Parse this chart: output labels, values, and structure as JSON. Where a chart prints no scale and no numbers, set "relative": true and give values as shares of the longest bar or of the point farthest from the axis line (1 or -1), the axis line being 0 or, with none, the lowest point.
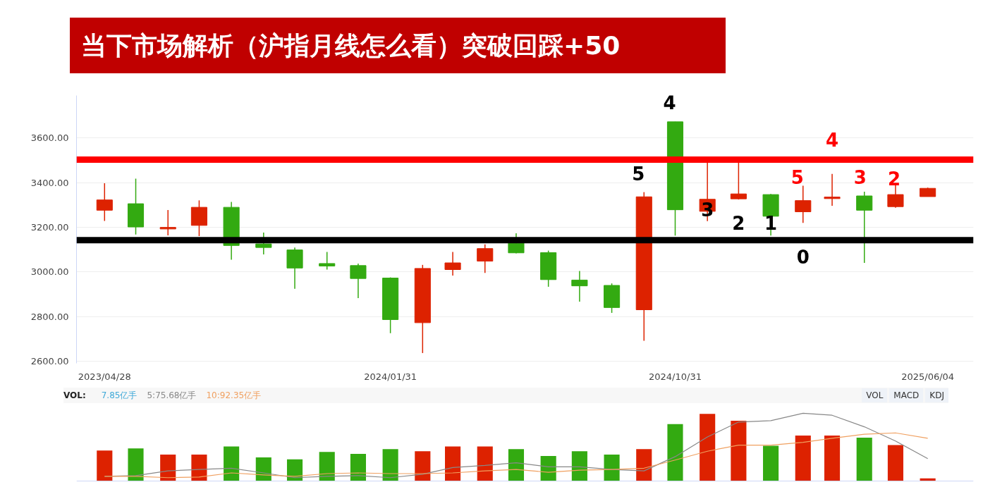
{
  "chart_data": [
    {
      "type": "candlestick",
      "title": "当下市场解析（沪指月线怎么看）突破回踩+50",
      "x": [
        "2023-04",
        "2023-05",
        "2023-06",
        "2023-07",
        "2023-08",
        "2023-09",
        "2023-10",
        "2023-11",
        "2023-12",
        "2024-01",
        "2024-02",
        "2024-03",
        "2024-04",
        "2024-05",
        "2024-06",
        "2024-07",
        "2024-08",
        "2024-09",
        "2024-10",
        "2024-11",
        "2024-12",
        "2025-01",
        "2025-02",
        "2025-03",
        "2025-04",
        "2025-05",
        "2025-06"
      ],
      "ohlc": [
        [
          3276,
          3397,
          3228,
          3322
        ],
        [
          3305,
          3417,
          3167,
          3201
        ],
        [
          3192,
          3277,
          3163,
          3199
        ],
        [
          3208,
          3320,
          3160,
          3289
        ],
        [
          3289,
          3313,
          3054,
          3118
        ],
        [
          3125,
          3176,
          3078,
          3109
        ],
        [
          3098,
          3109,
          2924,
          3017
        ],
        [
          3037,
          3089,
          3010,
          3026
        ],
        [
          3028,
          3037,
          2882,
          2970
        ],
        [
          2972,
          2975,
          2725,
          2786
        ],
        [
          2772,
          3031,
          2636,
          3015
        ],
        [
          3010,
          3089,
          2983,
          3040
        ],
        [
          3048,
          3123,
          2995,
          3104
        ],
        [
          3128,
          3173,
          3083,
          3085
        ],
        [
          3086,
          3095,
          2933,
          2965
        ],
        [
          2963,
          3004,
          2866,
          2937
        ],
        [
          2939,
          2948,
          2816,
          2840
        ],
        [
          2830,
          3357,
          2691,
          3336
        ],
        [
          3672,
          3672,
          3162,
          3278
        ],
        [
          3271,
          3494,
          3227,
          3325
        ],
        [
          3327,
          3494,
          3324,
          3349
        ],
        [
          3346,
          3349,
          3162,
          3249
        ],
        [
          3269,
          3386,
          3219,
          3319
        ],
        [
          3328,
          3439,
          3296,
          3335
        ],
        [
          3340,
          3359,
          3040,
          3276
        ],
        [
          3292,
          3388,
          3287,
          3346
        ],
        [
          3337,
          3377,
          3337,
          3374
        ]
      ],
      "colors": [
        "#dd2200",
        "#33aa11",
        "#dd2200",
        "#dd2200",
        "#33aa11",
        "#33aa11",
        "#33aa11",
        "#33aa11",
        "#33aa11",
        "#33aa11",
        "#dd2200",
        "#dd2200",
        "#dd2200",
        "#33aa11",
        "#33aa11",
        "#33aa11",
        "#33aa11",
        "#dd2200",
        "#33aa11",
        "#dd2200",
        "#dd2200",
        "#33aa11",
        "#dd2200",
        "#dd2200",
        "#33aa11",
        "#dd2200",
        "#dd2200"
      ],
      "xlim": [
        "2023-03-05",
        "2025-07-15"
      ],
      "xticks": [
        {
          "value": "2023-04",
          "label": "2023/04/28"
        },
        {
          "value": "2024-01",
          "label": "2024/01/31"
        },
        {
          "value": "2024-10",
          "label": "2024/10/31"
        },
        {
          "value": "2025-06",
          "label": "2025/06/04"
        }
      ],
      "ylim": [
        2590,
        3790
      ],
      "yticks": [
        {
          "value": 2600,
          "label": "2600.00"
        },
        {
          "value": 2800,
          "label": "2800.00"
        },
        {
          "value": 3000,
          "label": "3000.00"
        },
        {
          "value": 3200,
          "label": "3200.00"
        },
        {
          "value": 3400,
          "label": "3400.00"
        },
        {
          "value": 3600,
          "label": "3600.00"
        }
      ],
      "grid": "y",
      "ref_lines": [
        {
          "axis": "y",
          "value": 3503,
          "color": "#ff0000"
        },
        {
          "axis": "y",
          "value": 3142,
          "color": "#000000"
        }
      ],
      "annotations": [
        "4",
        "5",
        "3",
        "2",
        "1",
        "0",
        "4",
        "5",
        "3",
        "2"
      ]
    },
    {
      "type": "bar",
      "relative": true,
      "tick_labels": false,
      "legend": "top",
      "x": [
        "2023-04",
        "2023-05",
        "2023-06",
        "2023-07",
        "2023-08",
        "2023-09",
        "2023-10",
        "2023-11",
        "2023-12",
        "2024-01",
        "2024-02",
        "2024-03",
        "2024-04",
        "2024-05",
        "2024-06",
        "2024-07",
        "2024-08",
        "2024-09",
        "2024-10",
        "2024-11",
        "2024-12",
        "2025-01",
        "2025-02",
        "2025-03",
        "2025-04",
        "2025-05",
        "2025-06"
      ],
      "xlim": [
        "2023-03-05",
        "2025-07-15"
      ],
      "annotations": [
        "VOL:",
        "7.85亿手",
        "VOL",
        "MACD",
        "KDJ"
      ],
      "series": [
        {
          "type": "bar",
          "colors": [
            "#dd2200",
            "#33aa11",
            "#dd2200",
            "#dd2200",
            "#33aa11",
            "#33aa11",
            "#33aa11",
            "#33aa11",
            "#33aa11",
            "#33aa11",
            "#dd2200",
            "#dd2200",
            "#dd2200",
            "#33aa11",
            "#33aa11",
            "#33aa11",
            "#33aa11",
            "#dd2200",
            "#33aa11",
            "#dd2200",
            "#dd2200",
            "#33aa11",
            "#dd2200",
            "#dd2200",
            "#33aa11",
            "#dd2200",
            "#dd2200"
          ],
          "values": [
            0.45,
            0.48,
            0.39,
            0.39,
            0.51,
            0.35,
            0.32,
            0.43,
            0.4,
            0.47,
            0.44,
            0.51,
            0.51,
            0.47,
            0.37,
            0.44,
            0.39,
            0.47,
            0.84,
            0.99,
            0.89,
            0.52,
            0.67,
            0.67,
            0.64,
            0.53,
            0.04
          ]
        },
        {
          "type": "line",
          "name": "5:75.68亿手",
          "color": "#888888",
          "values": [
            0.07,
            0.08,
            0.15,
            0.17,
            0.19,
            0.12,
            0.05,
            0.07,
            0.08,
            0.05,
            0.1,
            0.2,
            0.23,
            0.27,
            0.21,
            0.21,
            0.17,
            0.15,
            0.36,
            0.65,
            0.87,
            0.89,
            1,
            0.97,
            0.8,
            0.59,
            0.33
          ]
        },
        {
          "type": "line",
          "name": "10:92.35亿手",
          "color": "#f0a060",
          "values": [
            0.07,
            0.07,
            0.05,
            0.06,
            0.12,
            0.09,
            0.07,
            0.11,
            0.12,
            0.11,
            0.11,
            0.12,
            0.15,
            0.17,
            0.13,
            0.16,
            0.17,
            0.19,
            0.31,
            0.44,
            0.53,
            0.53,
            0.57,
            0.63,
            0.69,
            0.71,
            0.63
          ]
        }
      ]
    }
  ]
}
